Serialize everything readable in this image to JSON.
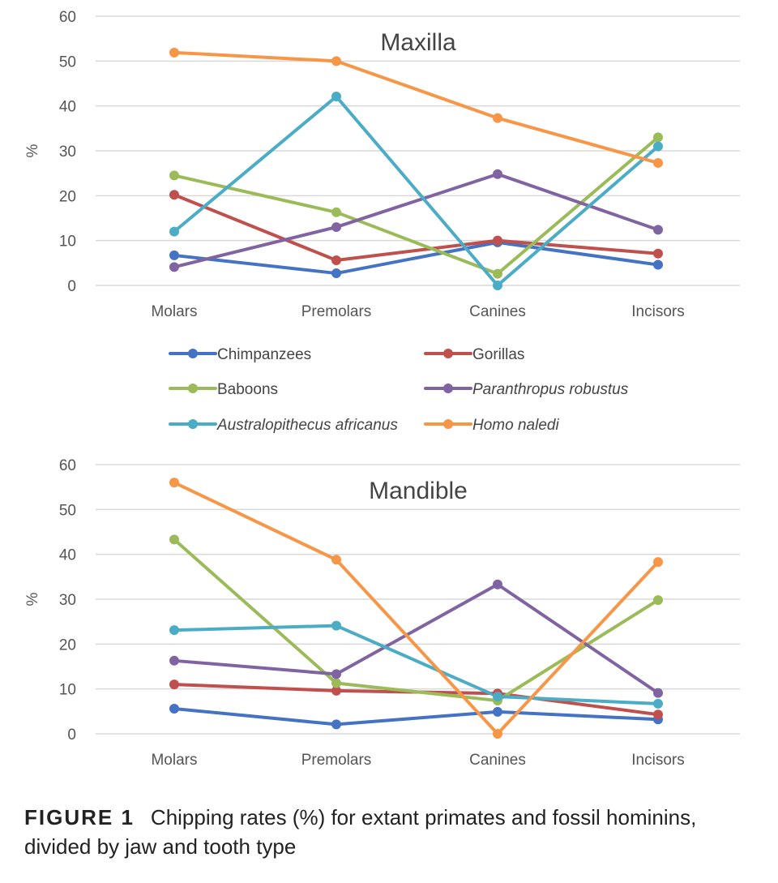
{
  "chart_data": [
    {
      "type": "line",
      "title": "Maxilla",
      "ylabel": "%",
      "xlabel": "",
      "ylim": [
        0,
        60
      ],
      "yticks": [
        0,
        10,
        20,
        30,
        40,
        50,
        60
      ],
      "grid": true,
      "categories": [
        "Molars",
        "Premolars",
        "Canines",
        "Incisors"
      ],
      "series": [
        {
          "name": "Chimpanzees",
          "color": "#4472C4",
          "values": [
            6.7,
            2.7,
            9.6,
            4.6
          ]
        },
        {
          "name": "Gorillas",
          "color": "#C0504D",
          "values": [
            20.2,
            5.6,
            10.0,
            7.1
          ]
        },
        {
          "name": "Baboons",
          "color": "#9BBB59",
          "values": [
            24.5,
            16.3,
            2.6,
            33.0
          ]
        },
        {
          "name": "Paranthropus robustus",
          "color": "#8064A2",
          "values": [
            4.1,
            13.0,
            24.8,
            12.4
          ]
        },
        {
          "name": "Australopithecus africanus",
          "color": "#4BACC6",
          "values": [
            12.0,
            42.1,
            0.0,
            31.0
          ]
        },
        {
          "name": "Homo naledi",
          "color": "#F79646",
          "values": [
            51.9,
            50.0,
            37.3,
            27.3
          ]
        }
      ],
      "legend": "below"
    },
    {
      "type": "line",
      "title": "Mandible",
      "ylabel": "%",
      "xlabel": "",
      "ylim": [
        0,
        60
      ],
      "yticks": [
        0,
        10,
        20,
        30,
        40,
        50,
        60
      ],
      "grid": true,
      "categories": [
        "Molars",
        "Premolars",
        "Canines",
        "Incisors"
      ],
      "series": [
        {
          "name": "Chimpanzees",
          "color": "#4472C4",
          "values": [
            5.6,
            2.1,
            4.9,
            3.2
          ]
        },
        {
          "name": "Gorillas",
          "color": "#C0504D",
          "values": [
            11.0,
            9.6,
            9.0,
            4.3
          ]
        },
        {
          "name": "Baboons",
          "color": "#9BBB59",
          "values": [
            43.3,
            11.3,
            7.4,
            29.8
          ]
        },
        {
          "name": "Paranthropus robustus",
          "color": "#8064A2",
          "values": [
            16.3,
            13.3,
            33.3,
            9.1
          ]
        },
        {
          "name": "Australopithecus africanus",
          "color": "#4BACC6",
          "values": [
            23.1,
            24.1,
            8.3,
            6.7
          ]
        },
        {
          "name": "Homo naledi",
          "color": "#F79646",
          "values": [
            56.0,
            38.8,
            0.0,
            38.3
          ]
        }
      ]
    }
  ],
  "legend": {
    "entries": [
      {
        "label": "Chimpanzees",
        "color": "#4472C4",
        "italic": false
      },
      {
        "label": "Gorillas",
        "color": "#C0504D",
        "italic": false
      },
      {
        "label": "Baboons",
        "color": "#9BBB59",
        "italic": false
      },
      {
        "label": "Paranthropus robustus",
        "color": "#8064A2",
        "italic": true
      },
      {
        "label": "Australopithecus africanus",
        "color": "#4BACC6",
        "italic": true
      },
      {
        "label": "Homo naledi",
        "color": "#F79646",
        "italic": true
      }
    ]
  },
  "caption": {
    "label": "FIGURE 1",
    "text": "Chipping rates (%) for extant primates and fossil hominins, divided by jaw and tooth type"
  },
  "style": {
    "grid_color": "#D9D9D9",
    "text_color": "#555555"
  }
}
